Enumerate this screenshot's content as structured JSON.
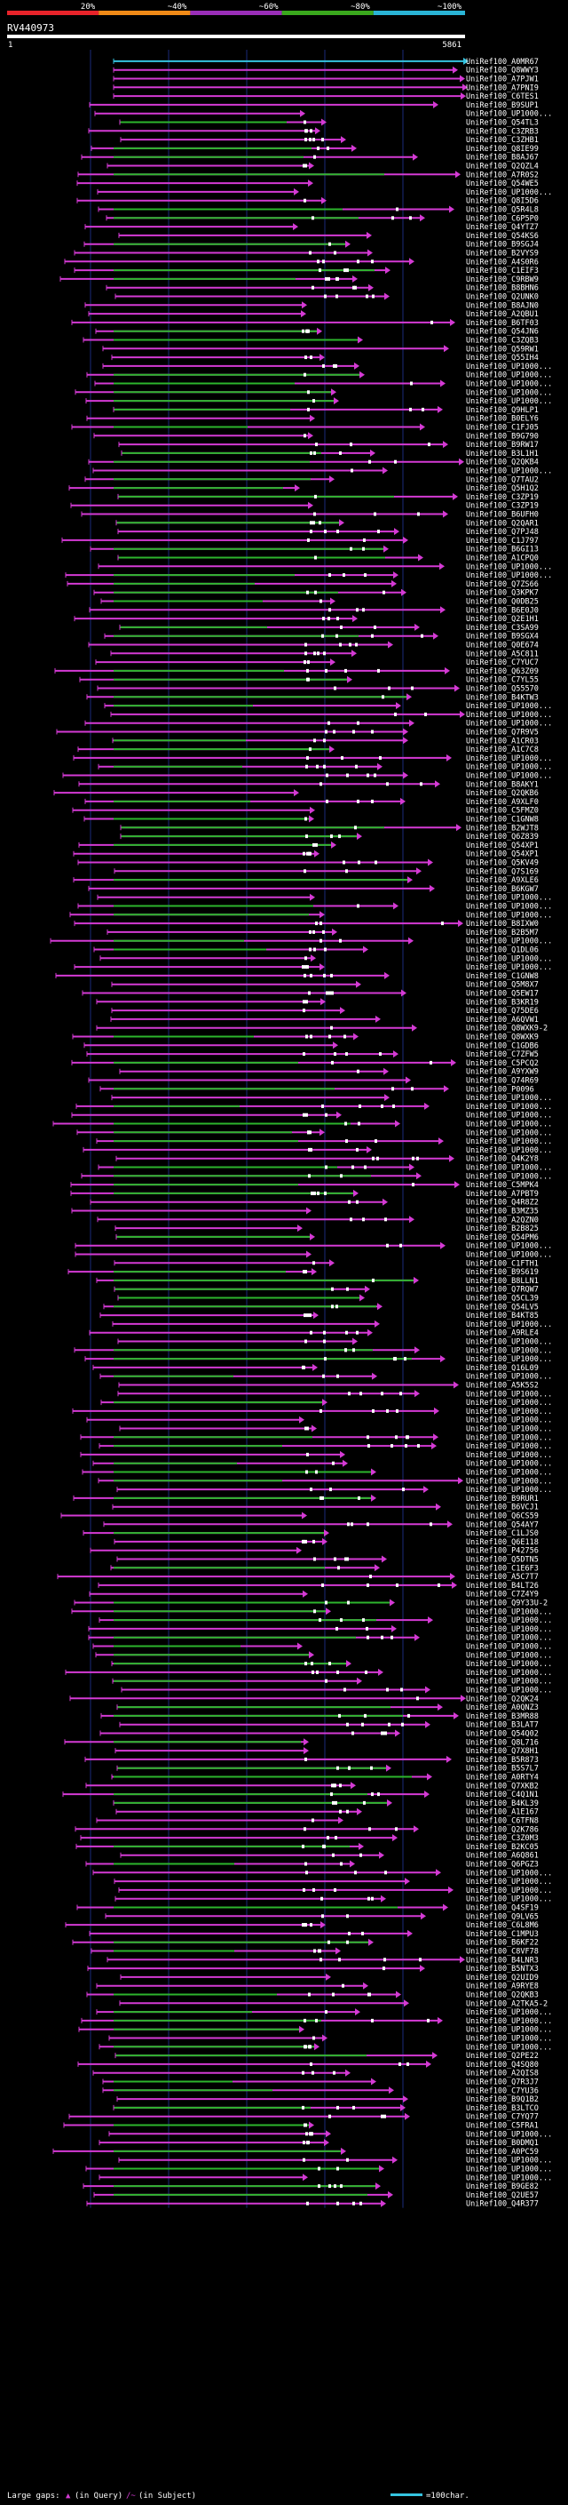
{
  "chart_data": {
    "type": "alignment-overview",
    "title": "RV440973",
    "query_length": 5861,
    "scale_start": "1",
    "scale_end": "5861",
    "identity_scale": {
      "labels": [
        "20%",
        "~40%",
        "~60%",
        "~80%",
        "~100%"
      ],
      "colors": [
        "#e8232a",
        "#f08a17",
        "#9a2eb8",
        "#3aa81d",
        "#2ab4d6"
      ]
    },
    "legend": {
      "large_gaps_prefix": "Large gaps:",
      "large_gaps_query": "(in Query)",
      "large_gaps_subject": "(in Subject)",
      "scale_note": "=100char."
    },
    "colors": {
      "pink": "#d43ad4",
      "green": "#2db52d",
      "cyan": "#35c4e0",
      "white": "#ffffff",
      "grid": "#1a2a7a"
    },
    "hits": [
      "UniRef100_A0MR67",
      "UniRef100_Q8WWY3",
      "UniRef100_A7PJW1",
      "UniRef100_A7PNI9",
      "UniRef100_C6TES1",
      "UniRef100_B9SUP1",
      "UniRef100_UP1000...",
      "UniRef100_Q54TL3",
      "UniRef100_C3ZRB3",
      "UniRef100_C3ZHB1",
      "UniRef100_Q8IE99",
      "UniRef100_B8AJ67",
      "UniRef100_Q2QZL4",
      "UniRef100_A7R0S2",
      "UniRef100_Q54WE5",
      "UniRef100_UP1000...",
      "UniRef100_Q8I5D6",
      "UniRef100_Q5R4L8",
      "UniRef100_C6P5P0",
      "UniRef100_Q4YTZ7",
      "UniRef100_Q54KS6",
      "UniRef100_B9SGJ4",
      "UniRef100_B2VYS9",
      "UniRef100_A4S0R6",
      "UniRef100_C1EIF3",
      "UniRef100_C9RBW9",
      "UniRef100_B8BHN6",
      "UniRef100_Q2UNK0",
      "UniRef100_B8AJN0",
      "UniRef100_A2QBU1",
      "UniRef100_B6TF03",
      "UniRef100_Q54JN6",
      "UniRef100_C3ZQB3",
      "UniRef100_Q59RW1",
      "UniRef100_Q55IH4",
      "UniRef100_UP1000...",
      "UniRef100_UP1000...",
      "UniRef100_UP1000...",
      "UniRef100_UP1000...",
      "UniRef100_UP1000...",
      "UniRef100_Q9HLP1",
      "UniRef100_B0ELY6",
      "UniRef100_C1FJ05",
      "UniRef100_B9G790",
      "UniRef100_B9RW17",
      "UniRef100_B3L1H1",
      "UniRef100_Q2QKB4",
      "UniRef100_UP1000...",
      "UniRef100_Q7TAU2",
      "UniRef100_Q5H1Q2",
      "UniRef100_C3ZP19",
      "UniRef100_C3ZP19",
      "UniRef100_B6UFH0",
      "UniRef100_Q2QAR1",
      "UniRef100_Q7PJ48",
      "UniRef100_C1J797",
      "UniRef100_B6GI13",
      "UniRef100_A1CPQ0",
      "UniRef100_UP1000...",
      "UniRef100_UP1000...",
      "UniRef100_Q7ZS66",
      "UniRef100_Q3KPK7",
      "UniRef100_Q0DB25",
      "UniRef100_B6E0J0",
      "UniRef100_Q2E1H1",
      "UniRef100_C3SA99",
      "UniRef100_B9SGX4",
      "UniRef100_Q0E674",
      "UniRef100_A5C811",
      "UniRef100_C7YUC7",
      "UniRef100_Q63Z09",
      "UniRef100_C7YL55",
      "UniRef100_Q55570",
      "UniRef100_B4KTW3",
      "UniRef100_UP1000...",
      "UniRef100_UP1000...",
      "UniRef100_UP1000...",
      "UniRef100_Q7R9V5",
      "UniRef100_A1CR03",
      "UniRef100_A1C7C8",
      "UniRef100_UP1000...",
      "UniRef100_UP1000...",
      "UniRef100_UP1000...",
      "UniRef100_B8AKY1",
      "UniRef100_Q2QKB6",
      "UniRef100_A9XLF0",
      "UniRef100_C5FMZ0",
      "UniRef100_C1GNW8",
      "UniRef100_B2WJT8",
      "UniRef100_Q6Z839",
      "UniRef100_Q54XP1",
      "UniRef100_Q54XP1",
      "UniRef100_Q5KV49",
      "UniRef100_Q7S169",
      "UniRef100_A9XLE6",
      "UniRef100_B6KGW7",
      "UniRef100_UP1000...",
      "UniRef100_UP1000...",
      "UniRef100_UP1000...",
      "UniRef100_B8IXW0",
      "UniRef100_B2B5M7",
      "UniRef100_UP1000...",
      "UniRef100_Q1DL06",
      "UniRef100_UP1000...",
      "UniRef100_UP1000...",
      "UniRef100_C1GNW8",
      "UniRef100_Q5M8X7",
      "UniRef100_Q5EW17",
      "UniRef100_B3KR19",
      "UniRef100_Q75DE6",
      "UniRef100_A6QVW1",
      "UniRef100_Q8WXK9-2",
      "UniRef100_Q8WXK9",
      "UniRef100_C1GDB6",
      "UniRef100_C7ZFW5",
      "UniRef100_C5PCQ2",
      "UniRef100_A9YXW9",
      "UniRef100_Q74R69",
      "UniRef100_P0096",
      "UniRef100_UP1000...",
      "UniRef100_UP1000...",
      "UniRef100_UP1000...",
      "UniRef100_UP1000...",
      "UniRef100_UP1000...",
      "UniRef100_UP1000...",
      "UniRef100_UP1000...",
      "UniRef100_Q4K2Y8",
      "UniRef100_UP1000...",
      "UniRef100_UP1000...",
      "UniRef100_C5MPK4",
      "UniRef100_A7PBT9",
      "UniRef100_Q4R8Z2",
      "UniRef100_B3MZ35",
      "UniRef100_A2QZN0",
      "UniRef100_B2B825",
      "UniRef100_Q54PM6",
      "UniRef100_UP1000...",
      "UniRef100_UP1000...",
      "UniRef100_C1FTH1",
      "UniRef100_B9S619",
      "UniRef100_B8LLN1",
      "UniRef100_Q7RQW7",
      "UniRef100_Q5CL39",
      "UniRef100_Q54LV5",
      "UniRef100_B4KT85",
      "UniRef100_UP1000...",
      "UniRef100_A9RLE4",
      "UniRef100_UP1000...",
      "UniRef100_UP1000...",
      "UniRef100_UP1000...",
      "UniRef100_Q16L09",
      "UniRef100_UP1000...",
      "UniRef100_A5K5S2",
      "UniRef100_UP1000...",
      "UniRef100_UP1000...",
      "UniRef100_UP1000...",
      "UniRef100_UP1000...",
      "UniRef100_UP1000...",
      "UniRef100_UP1000...",
      "UniRef100_UP1000...",
      "UniRef100_UP1000...",
      "UniRef100_UP1000...",
      "UniRef100_UP1000...",
      "UniRef100_UP1000...",
      "UniRef100_UP1000...",
      "UniRef100_B9RUR1",
      "UniRef100_B6VCJ1",
      "UniRef100_Q6CS59",
      "UniRef100_Q54AY7",
      "UniRef100_C1LJS0",
      "UniRef100_Q6E118",
      "UniRef100_P42756",
      "UniRef100_Q5DTN5",
      "UniRef100_C1E6F3",
      "UniRef100_A5C7T7",
      "UniRef100_B4LT26",
      "UniRef100_C7Z4Y9",
      "UniRef100_Q9Y33U-2",
      "UniRef100_UP1000...",
      "UniRef100_UP1000...",
      "UniRef100_UP1000...",
      "UniRef100_UP1000...",
      "UniRef100_UP1000...",
      "UniRef100_UP1000...",
      "UniRef100_UP1000...",
      "UniRef100_UP1000...",
      "UniRef100_UP1000...",
      "UniRef100_UP1000...",
      "UniRef100_Q2QK24",
      "UniRef100_A0QNZ3",
      "UniRef100_B3MR88",
      "UniRef100_B3LAT7",
      "UniRef100_Q54Q02",
      "UniRef100_Q8L716",
      "UniRef100_Q7X8H1",
      "UniRef100_B5R873",
      "UniRef100_B5S7L7",
      "UniRef100_A0RTY4",
      "UniRef100_Q7XKB2",
      "UniRef100_C4Q1N1",
      "UniRef100_B4KL39",
      "UniRef100_A1E167",
      "UniRef100_C6TFN8",
      "UniRef100_Q2K786",
      "UniRef100_C3Z0M3",
      "UniRef100_B2KC05",
      "UniRef100_A6Q861",
      "UniRef100_Q6PGZ3",
      "UniRef100_UP1000...",
      "UniRef100_UP1000...",
      "UniRef100_UP1000...",
      "UniRef100_UP1000...",
      "UniRef100_Q4SF19",
      "UniRef100_Q9LV65",
      "UniRef100_C6L8M6",
      "UniRef100_C1MPU3",
      "UniRef100_B6KF22",
      "UniRef100_C8VF78",
      "UniRef100_B4LNR3",
      "UniRef100_B5NTX3",
      "UniRef100_Q2UID9",
      "UniRef100_A9RYE8",
      "UniRef100_Q2QKB3",
      "UniRef100_A2TKA5-2",
      "UniRef100_UP1000...",
      "UniRef100_UP1000...",
      "UniRef100_UP1000...",
      "UniRef100_UP1000...",
      "UniRef100_UP1000...",
      "UniRef100_Q2PE22",
      "UniRef100_Q4SQ80",
      "UniRef100_A2QIS8",
      "UniRef100_Q7R3J7",
      "UniRef100_C7YU36",
      "UniRef100_B9Q1B2",
      "UniRef100_B3LTCO",
      "UniRef100_C7YQ77",
      "UniRef100_C5FRA1",
      "UniRef100_UP1000...",
      "UniRef100_B0DMQ1",
      "UniRef100_A0PC59",
      "UniRef100_UP1000...",
      "UniRef100_UP1000...",
      "UniRef100_UP1000...",
      "UniRef100_B9GE82",
      "UniRef100_Q2UE57",
      "UniRef100_Q4R377"
    ]
  }
}
